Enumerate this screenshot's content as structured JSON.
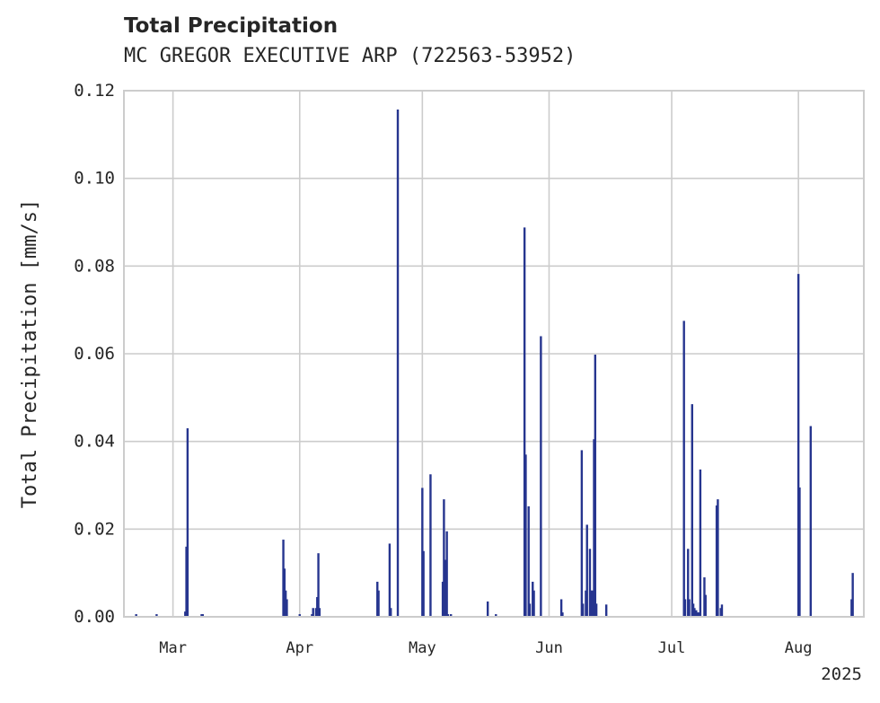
{
  "chart_data": {
    "type": "bar",
    "title": "Total Precipitation",
    "subtitle": "MC GREGOR EXECUTIVE ARP (722563-53952)",
    "xlabel": "",
    "ylabel": "Total Precipitation [mm/s]",
    "ylim": [
      0,
      0.12
    ],
    "xlim": [
      "2025-02-17",
      "2025-08-17"
    ],
    "yticks": [
      "0.00",
      "0.02",
      "0.04",
      "0.06",
      "0.08",
      "0.10",
      "0.12"
    ],
    "xticks": [
      {
        "date": "2025-03-01",
        "label": "Mar"
      },
      {
        "date": "2025-04-01",
        "label": "Apr"
      },
      {
        "date": "2025-05-01",
        "label": "May"
      },
      {
        "date": "2025-06-01",
        "label": "Jun"
      },
      {
        "date": "2025-07-01",
        "label": "Jul"
      },
      {
        "date": "2025-08-01",
        "label": "Aug"
      }
    ],
    "year_label": "2025",
    "grid": true,
    "bar_color": "#26358f",
    "series": [
      {
        "x": [
          "2025-02-20",
          "2025-02-25",
          "2025-03-04",
          "2025-03-04",
          "2025-03-04",
          "2025-03-08",
          "2025-03-08",
          "2025-03-28",
          "2025-03-28",
          "2025-03-28",
          "2025-03-28",
          "2025-04-01",
          "2025-04-04",
          "2025-04-04",
          "2025-04-05",
          "2025-04-05",
          "2025-04-05",
          "2025-04-05",
          "2025-04-20",
          "2025-04-20",
          "2025-04-23",
          "2025-04-23",
          "2025-04-25",
          "2025-05-01",
          "2025-05-01",
          "2025-05-03",
          "2025-05-06",
          "2025-05-06",
          "2025-05-06",
          "2025-05-07",
          "2025-05-07",
          "2025-05-08",
          "2025-05-17",
          "2025-05-19",
          "2025-05-26",
          "2025-05-26",
          "2025-05-27",
          "2025-05-27",
          "2025-05-28",
          "2025-05-28",
          "2025-05-30",
          "2025-06-04",
          "2025-06-04",
          "2025-06-09",
          "2025-06-09",
          "2025-06-10",
          "2025-06-10",
          "2025-06-11",
          "2025-06-11",
          "2025-06-11",
          "2025-06-12",
          "2025-06-12",
          "2025-06-12",
          "2025-06-15",
          "2025-07-04",
          "2025-07-04",
          "2025-07-05",
          "2025-07-05",
          "2025-07-06",
          "2025-07-06",
          "2025-07-06",
          "2025-07-07",
          "2025-07-07",
          "2025-07-07",
          "2025-07-08",
          "2025-07-09",
          "2025-07-09",
          "2025-07-12",
          "2025-07-12",
          "2025-07-13",
          "2025-07-13",
          "2025-08-01",
          "2025-08-01",
          "2025-08-04",
          "2025-08-14",
          "2025-08-14"
        ],
        "values": [
          0.0006,
          0.0006,
          0.0012,
          0.016,
          0.043,
          0.0006,
          0.0006,
          0.0176,
          0.011,
          0.006,
          0.004,
          0.0006,
          0.0006,
          0.002,
          0.002,
          0.0045,
          0.0145,
          0.002,
          0.008,
          0.006,
          0.0167,
          0.002,
          0.1157,
          0.0294,
          0.015,
          0.0325,
          0.008,
          0.0268,
          0.013,
          0.0195,
          0.0006,
          0.0006,
          0.0035,
          0.0006,
          0.0888,
          0.037,
          0.0252,
          0.003,
          0.008,
          0.006,
          0.064,
          0.004,
          0.001,
          0.038,
          0.003,
          0.006,
          0.021,
          0.0155,
          0.006,
          0.006,
          0.0405,
          0.0598,
          0.003,
          0.0028,
          0.0675,
          0.004,
          0.0155,
          0.004,
          0.0485,
          0.003,
          0.002,
          0.0015,
          0.001,
          0.001,
          0.0336,
          0.009,
          0.005,
          0.0254,
          0.0268,
          0.002,
          0.0028,
          0.0782,
          0.0295,
          0.0435,
          0.004,
          0.01
        ]
      }
    ]
  }
}
